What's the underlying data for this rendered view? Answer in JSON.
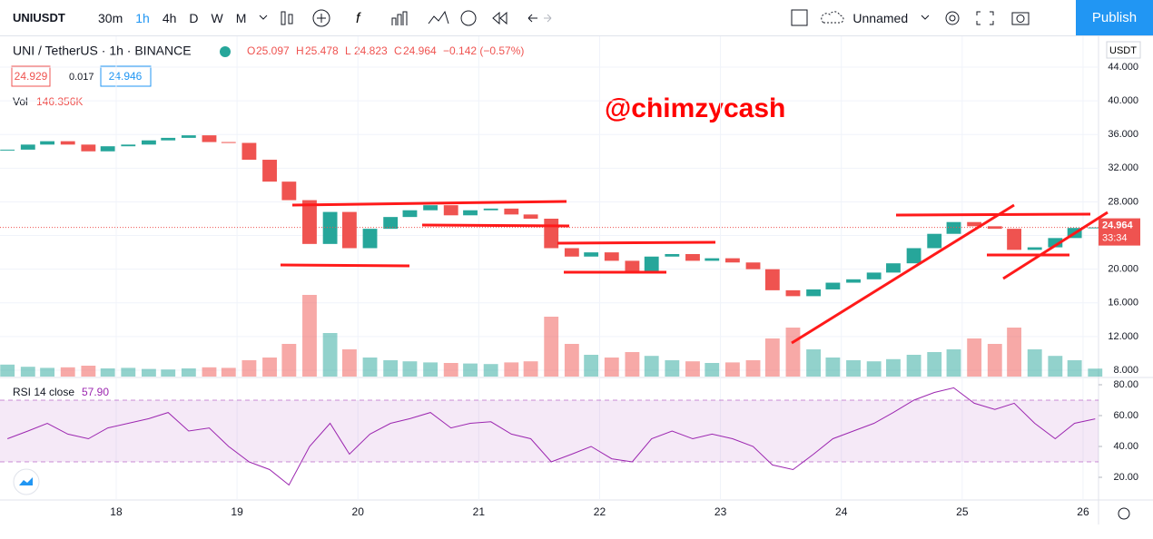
{
  "toolbar": {
    "symbol": "UNIUSDT",
    "intervals": [
      "30m",
      "1h",
      "4h",
      "D",
      "W",
      "M"
    ],
    "layout_name": "Unnamed",
    "publish": "Publish"
  },
  "chart_data": {
    "type": "candlestick",
    "title": "UNI / TetherUS · 1h · BINANCE",
    "ohlc_labels": [
      {
        "label": "O",
        "value": "25.097"
      },
      {
        "label": "H",
        "value": "25.478"
      },
      {
        "label": "L",
        "value": "24.823"
      },
      {
        "label": "C",
        "value": "24.964"
      }
    ],
    "change": "−0.142 (−0.57%)",
    "bid": "24.929",
    "spread": "0.017",
    "ask": "24.946",
    "watermark": "@chimzycash",
    "currency": "USDT",
    "last_price": 24.964,
    "countdown": "33:34",
    "up_color": "#26a69a",
    "down_color": "#ef5350",
    "x": [
      17.1,
      17.27,
      17.43,
      17.6,
      17.77,
      17.93,
      18.1,
      18.27,
      18.43,
      18.6,
      18.77,
      18.93,
      19.1,
      19.27,
      19.43,
      19.6,
      19.77,
      19.93,
      20.1,
      20.27,
      20.43,
      20.6,
      20.77,
      20.93,
      21.1,
      21.27,
      21.43,
      21.6,
      21.77,
      21.93,
      22.1,
      22.27,
      22.43,
      22.6,
      22.77,
      22.93,
      23.1,
      23.27,
      23.43,
      23.6,
      23.77,
      23.93,
      24.1,
      24.27,
      24.43,
      24.6,
      24.77,
      24.93,
      25.1,
      25.27,
      25.43,
      25.6,
      25.77,
      25.93,
      26.1
    ],
    "xlim": [
      17.08,
      26.11
    ],
    "xticks": [
      18,
      19,
      20,
      21,
      22,
      23,
      24,
      25,
      26
    ],
    "values": [
      34.2,
      34.8,
      35.2,
      34.8,
      34.0,
      34.6,
      34.8,
      35.3,
      35.6,
      35.9,
      35.1,
      35.0,
      33.0,
      30.4,
      28.2,
      23.0,
      26.8,
      22.5,
      24.8,
      26.2,
      27.0,
      27.6,
      26.4,
      27.0,
      27.2,
      26.5,
      26.0,
      22.5,
      21.5,
      22.0,
      21.0,
      19.8,
      21.5,
      21.8,
      21.0,
      21.3,
      20.8,
      20.0,
      17.5,
      16.8,
      17.6,
      18.4,
      18.8,
      19.6,
      20.7,
      22.5,
      24.2,
      25.6,
      25.1,
      24.8,
      22.3,
      22.6,
      23.7,
      24.9,
      24.964
    ],
    "ylim": [
      7.25,
      47.66
    ],
    "yticks": [
      {
        "value": 8,
        "label": "8.000"
      },
      {
        "value": 12,
        "label": "12.000"
      },
      {
        "value": 16,
        "label": "16.000"
      },
      {
        "value": 20,
        "label": "20.000"
      },
      {
        "value": 24,
        "label": "24.000"
      },
      {
        "value": 28,
        "label": "28.000"
      },
      {
        "value": 32,
        "label": "32.000"
      },
      {
        "value": 36,
        "label": "36.000"
      },
      {
        "value": 40,
        "label": "40.000"
      },
      {
        "value": 44,
        "label": "44.000"
      }
    ],
    "volume": {
      "name": "Vol",
      "value_label": "146.356K",
      "values": [
        220,
        180,
        160,
        170,
        200,
        150,
        160,
        140,
        130,
        150,
        170,
        160,
        300,
        350,
        600,
        1500,
        800,
        500,
        350,
        300,
        280,
        260,
        250,
        240,
        230,
        260,
        280,
        1100,
        600,
        400,
        350,
        450,
        380,
        300,
        280,
        250,
        260,
        300,
        700,
        900,
        500,
        350,
        300,
        280,
        320,
        400,
        450,
        500,
        700,
        600,
        900,
        500,
        380,
        300,
        146.356
      ]
    },
    "rsi": {
      "name": "RSI 14 close",
      "value_label": "57.90",
      "color": "#9c27b0",
      "values": [
        45,
        50,
        55,
        48,
        45,
        52,
        55,
        58,
        62,
        50,
        52,
        40,
        30,
        25,
        15,
        40,
        55,
        35,
        48,
        55,
        58,
        62,
        52,
        55,
        56,
        48,
        45,
        30,
        35,
        40,
        32,
        30,
        45,
        50,
        45,
        48,
        45,
        40,
        28,
        25,
        35,
        45,
        50,
        55,
        62,
        70,
        75,
        78,
        68,
        64,
        68,
        55,
        45,
        55,
        57.9
      ],
      "ylim": [
        5.3,
        84.7
      ],
      "yticks": [
        {
          "value": 20,
          "label": "20.00"
        },
        {
          "value": 40,
          "label": "40.00"
        },
        {
          "value": 60,
          "label": "60.00"
        },
        {
          "value": 80,
          "label": "80.00"
        }
      ],
      "bands": [
        30,
        70
      ]
    }
  }
}
